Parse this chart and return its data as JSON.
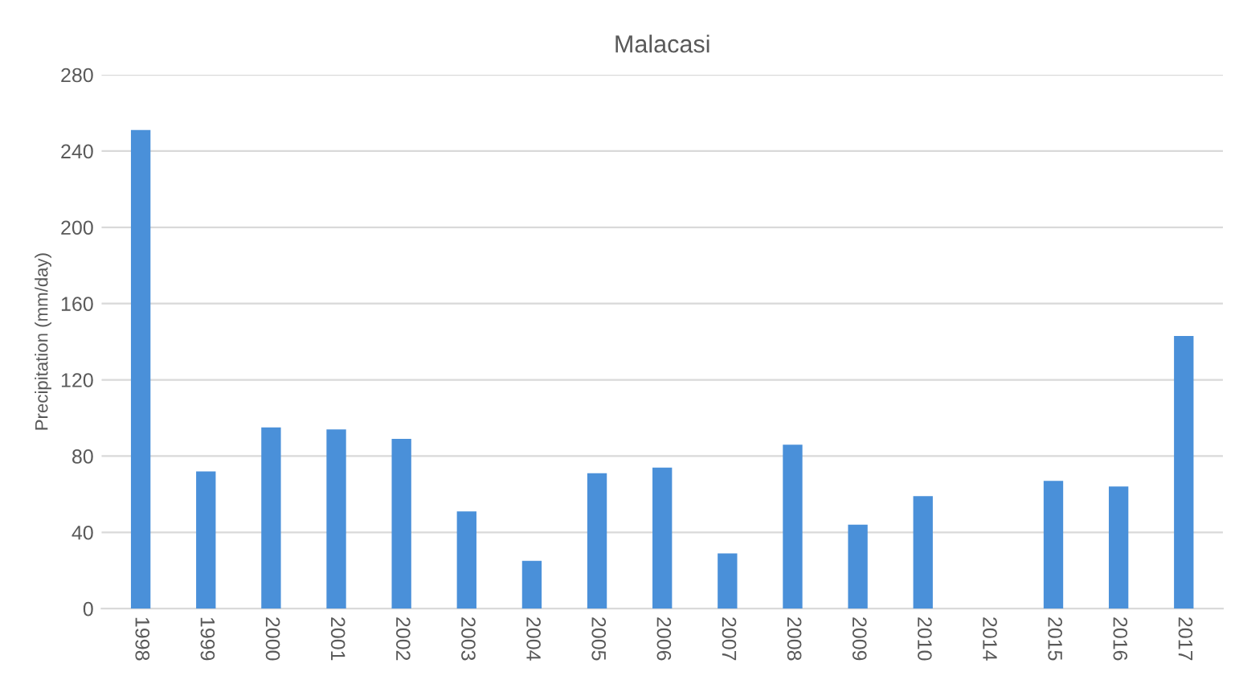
{
  "chart_data": {
    "type": "bar",
    "title": "Malacasi",
    "ylabel": "Precipitation (mm/day)",
    "categories": [
      "1998",
      "1999",
      "2000",
      "2001",
      "2002",
      "2003",
      "2004",
      "2005",
      "2006",
      "2007",
      "2008",
      "2009",
      "2010",
      "2014",
      "2015",
      "2016",
      "2017"
    ],
    "values": [
      251,
      72,
      95,
      94,
      89,
      51,
      25,
      71,
      74,
      29,
      86,
      44,
      59,
      0,
      67,
      64,
      143
    ],
    "color": "#4a90d9",
    "ylim": [
      0,
      280
    ],
    "yticks": [
      0,
      40,
      80,
      120,
      160,
      200,
      240,
      280
    ],
    "grid": "y"
  }
}
